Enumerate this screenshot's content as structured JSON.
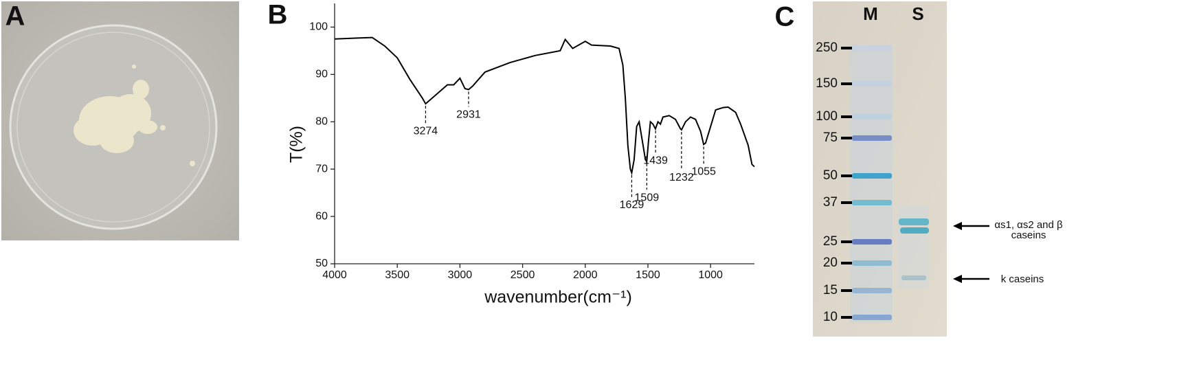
{
  "panel_labels": [
    "A",
    "B",
    "C"
  ],
  "chart_data": {
    "type": "line",
    "x": [
      4000,
      3800,
      3700,
      3600,
      3500,
      3400,
      3300,
      3274,
      3200,
      3100,
      3050,
      3000,
      2960,
      2931,
      2900,
      2850,
      2800,
      2600,
      2400,
      2200,
      2160,
      2100,
      2000,
      1950,
      1800,
      1730,
      1700,
      1680,
      1660,
      1640,
      1629,
      1610,
      1590,
      1570,
      1545,
      1520,
      1509,
      1495,
      1480,
      1460,
      1440,
      1420,
      1400,
      1380,
      1330,
      1280,
      1240,
      1232,
      1200,
      1160,
      1120,
      1080,
      1055,
      1040,
      1000,
      960,
      900,
      860,
      800,
      760,
      700,
      670,
      650
    ],
    "values": [
      97.5,
      97.7,
      97.8,
      96,
      93.5,
      89,
      85,
      83.8,
      85.5,
      87.8,
      87.8,
      89.2,
      87,
      86.8,
      87.5,
      89,
      90.5,
      92.5,
      94,
      95,
      97.4,
      95.5,
      97,
      96.2,
      96,
      95.5,
      92,
      85,
      75,
      70,
      69.2,
      72,
      79,
      80,
      76,
      72,
      71.6,
      76,
      80,
      79.5,
      78.5,
      80,
      79.5,
      81,
      81.3,
      80.5,
      78.5,
      78.3,
      80,
      81,
      80.5,
      78,
      75.2,
      75.5,
      79,
      82.5,
      83,
      83.1,
      82,
      79.5,
      75,
      71,
      70.5
    ],
    "color": "#000000",
    "xlim": [
      4000,
      650
    ],
    "xticks": [
      4000,
      3500,
      3000,
      2500,
      2000,
      1500,
      1000
    ],
    "ylim": [
      50,
      105
    ],
    "yticks": [
      50,
      60,
      70,
      80,
      90,
      100
    ],
    "xlabel": "wavenumber(cm⁻¹)",
    "ylabel": "T(%)",
    "peaks": [
      3274,
      2931,
      1629,
      1509,
      1439,
      1232,
      1055
    ]
  },
  "gel": {
    "lanes": [
      "M",
      "S"
    ],
    "markers": [
      250,
      150,
      100,
      75,
      50,
      37,
      25,
      20,
      15,
      10
    ],
    "annotations": [
      [
        "αs1, αs2 and β",
        "caseins"
      ],
      [
        "k caseins"
      ]
    ]
  }
}
